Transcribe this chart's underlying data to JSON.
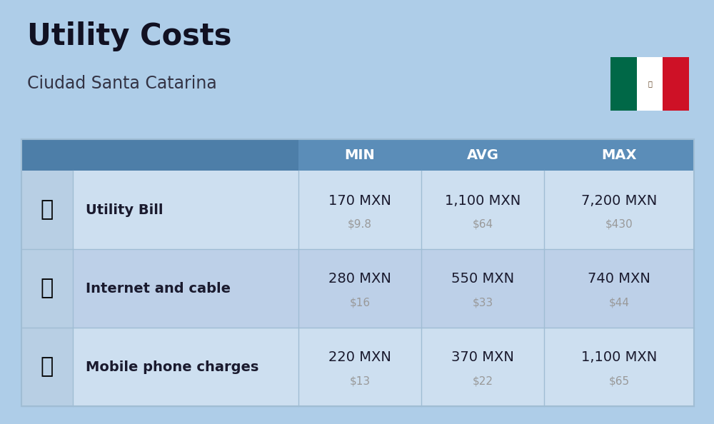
{
  "title": "Utility Costs",
  "subtitle": "Ciudad Santa Catarina",
  "background_color": "#aecde8",
  "header_bg_color": "#5b8db8",
  "header_text_color": "#ffffff",
  "row_bg_colors": [
    "#cddff0",
    "#bdd0e8",
    "#cddff0"
  ],
  "icon_col_bg": "#b8cfe4",
  "columns_header": [
    "MIN",
    "AVG",
    "MAX"
  ],
  "rows": [
    {
      "label": "Utility Bill",
      "min_mxn": "170 MXN",
      "min_usd": "$9.8",
      "avg_mxn": "1,100 MXN",
      "avg_usd": "$64",
      "max_mxn": "7,200 MXN",
      "max_usd": "$430"
    },
    {
      "label": "Internet and cable",
      "min_mxn": "280 MXN",
      "min_usd": "$16",
      "avg_mxn": "550 MXN",
      "avg_usd": "$33",
      "max_mxn": "740 MXN",
      "max_usd": "$44"
    },
    {
      "label": "Mobile phone charges",
      "min_mxn": "220 MXN",
      "min_usd": "$13",
      "avg_mxn": "370 MXN",
      "avg_usd": "$22",
      "max_mxn": "1,100 MXN",
      "max_usd": "$65"
    }
  ],
  "title_fontsize": 30,
  "subtitle_fontsize": 17,
  "header_fontsize": 14,
  "label_fontsize": 14,
  "value_fontsize": 14,
  "usd_fontsize": 11,
  "value_color": "#1a1a2e",
  "usd_color": "#999999",
  "label_color": "#1a1a2e",
  "divider_color": "#a0bdd4",
  "flag_green": "#006847",
  "flag_white": "#ffffff",
  "flag_red": "#ce1126"
}
